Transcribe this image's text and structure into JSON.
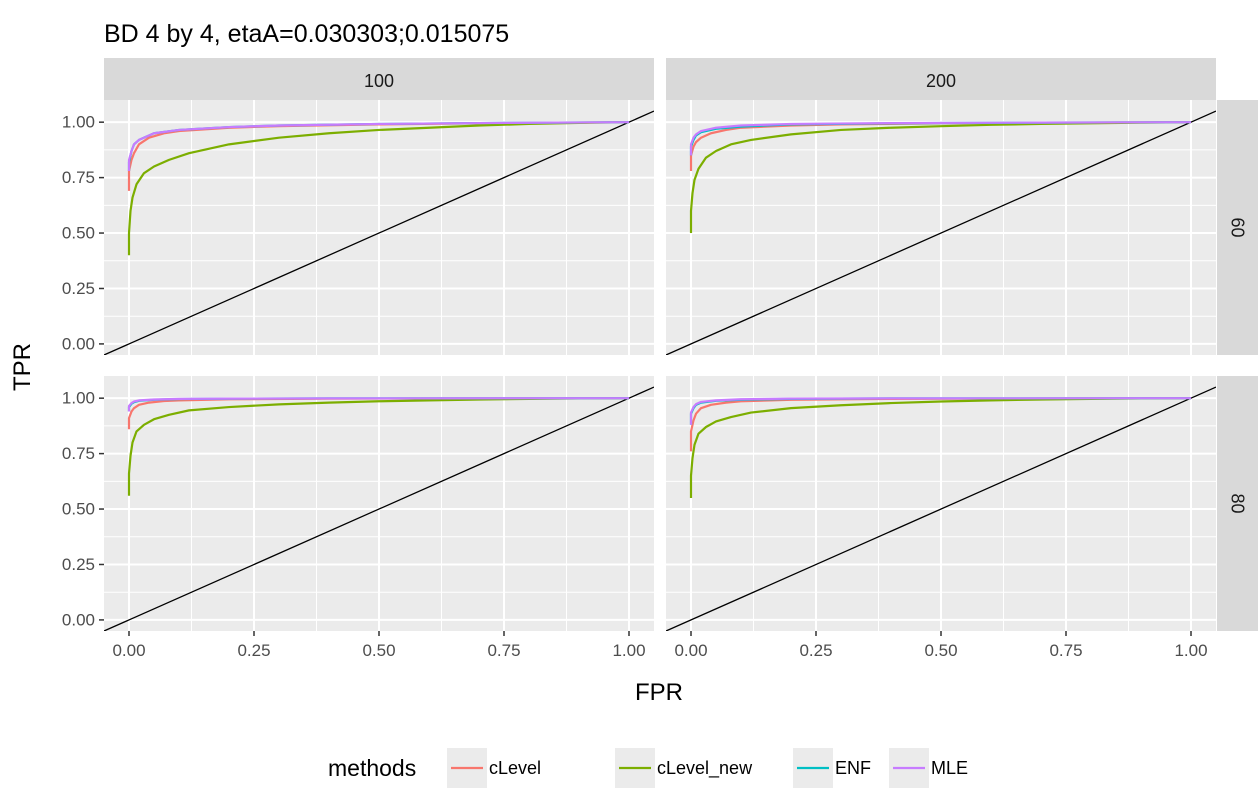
{
  "chart_data": {
    "type": "line",
    "title": "BD 4 by 4, etaA=0.030303;0.015075",
    "xlabel": "FPR",
    "ylabel": "TPR",
    "xlim": [
      0,
      1
    ],
    "ylim": [
      0,
      1
    ],
    "x_ticks": [
      "0.00",
      "0.25",
      "0.50",
      "0.75",
      "1.00"
    ],
    "y_ticks": [
      "0.00",
      "0.25",
      "0.50",
      "0.75",
      "1.00"
    ],
    "facet_cols": [
      "100",
      "200"
    ],
    "facet_rows": [
      "60",
      "80"
    ],
    "grid": true,
    "diagonal_reference": true,
    "legend": {
      "title": "methods",
      "position": "bottom",
      "entries": [
        {
          "name": "cLevel",
          "color": "#F8766D"
        },
        {
          "name": "cLevel_new",
          "color": "#7CAE00"
        },
        {
          "name": "ENF",
          "color": "#00BFC4"
        },
        {
          "name": "MLE",
          "color": "#C77CFF"
        }
      ]
    },
    "panels": [
      {
        "col": "100",
        "row": "60",
        "series": [
          {
            "name": "cLevel",
            "x": [
              0,
              0,
              0.005,
              0.01,
              0.02,
              0.04,
              0.07,
              0.1,
              0.2,
              0.3,
              0.5,
              0.7,
              1.0
            ],
            "y": [
              0.69,
              0.78,
              0.83,
              0.86,
              0.9,
              0.93,
              0.95,
              0.96,
              0.975,
              0.982,
              0.99,
              0.995,
              1.0
            ]
          },
          {
            "name": "cLevel_new",
            "x": [
              0,
              0,
              0.003,
              0.007,
              0.015,
              0.03,
              0.05,
              0.08,
              0.12,
              0.2,
              0.3,
              0.4,
              0.5,
              0.6,
              0.7,
              0.8,
              0.9,
              1.0
            ],
            "y": [
              0.4,
              0.5,
              0.6,
              0.66,
              0.72,
              0.77,
              0.8,
              0.83,
              0.86,
              0.9,
              0.93,
              0.95,
              0.965,
              0.975,
              0.985,
              0.992,
              0.997,
              1.0
            ]
          },
          {
            "name": "ENF",
            "x": [
              0,
              0,
              0.005,
              0.01,
              0.02,
              0.05,
              0.1,
              0.2,
              0.3,
              0.5,
              0.7,
              1.0
            ],
            "y": [
              0.78,
              0.82,
              0.87,
              0.9,
              0.92,
              0.95,
              0.965,
              0.978,
              0.985,
              0.992,
              0.996,
              1.0
            ]
          },
          {
            "name": "MLE",
            "x": [
              0,
              0,
              0.005,
              0.01,
              0.02,
              0.05,
              0.1,
              0.2,
              0.3,
              0.5,
              0.7,
              1.0
            ],
            "y": [
              0.78,
              0.83,
              0.87,
              0.9,
              0.92,
              0.95,
              0.965,
              0.978,
              0.985,
              0.992,
              0.996,
              1.0
            ]
          }
        ]
      },
      {
        "col": "200",
        "row": "60",
        "series": [
          {
            "name": "cLevel",
            "x": [
              0,
              0,
              0.005,
              0.01,
              0.02,
              0.04,
              0.07,
              0.1,
              0.2,
              0.3,
              0.5,
              1.0
            ],
            "y": [
              0.78,
              0.85,
              0.89,
              0.91,
              0.93,
              0.95,
              0.965,
              0.975,
              0.985,
              0.99,
              0.995,
              1.0
            ]
          },
          {
            "name": "cLevel_new",
            "x": [
              0,
              0,
              0.003,
              0.007,
              0.015,
              0.03,
              0.05,
              0.08,
              0.12,
              0.2,
              0.3,
              0.4,
              0.5,
              0.6,
              0.7,
              0.8,
              0.9,
              1.0
            ],
            "y": [
              0.5,
              0.6,
              0.68,
              0.74,
              0.79,
              0.84,
              0.87,
              0.9,
              0.92,
              0.945,
              0.965,
              0.975,
              0.982,
              0.988,
              0.992,
              0.995,
              0.998,
              1.0
            ]
          },
          {
            "name": "ENF",
            "x": [
              0,
              0,
              0.005,
              0.01,
              0.02,
              0.05,
              0.1,
              0.2,
              0.4,
              0.7,
              1.0
            ],
            "y": [
              0.85,
              0.89,
              0.92,
              0.94,
              0.955,
              0.97,
              0.98,
              0.99,
              0.995,
              0.998,
              1.0
            ]
          },
          {
            "name": "MLE",
            "x": [
              0,
              0,
              0.005,
              0.01,
              0.02,
              0.05,
              0.1,
              0.2,
              0.4,
              0.7,
              1.0
            ],
            "y": [
              0.85,
              0.9,
              0.93,
              0.945,
              0.96,
              0.975,
              0.985,
              0.992,
              0.996,
              0.998,
              1.0
            ]
          }
        ]
      },
      {
        "col": "100",
        "row": "80",
        "series": [
          {
            "name": "cLevel",
            "x": [
              0,
              0,
              0.005,
              0.01,
              0.02,
              0.04,
              0.07,
              0.1,
              0.2,
              0.4,
              1.0
            ],
            "y": [
              0.86,
              0.91,
              0.94,
              0.955,
              0.97,
              0.98,
              0.987,
              0.99,
              0.995,
              0.998,
              1.0
            ]
          },
          {
            "name": "cLevel_new",
            "x": [
              0,
              0,
              0.003,
              0.007,
              0.015,
              0.03,
              0.05,
              0.08,
              0.12,
              0.2,
              0.3,
              0.4,
              0.5,
              0.6,
              0.7,
              0.8,
              0.9,
              1.0
            ],
            "y": [
              0.56,
              0.66,
              0.74,
              0.8,
              0.85,
              0.88,
              0.905,
              0.925,
              0.945,
              0.96,
              0.972,
              0.98,
              0.986,
              0.99,
              0.994,
              0.997,
              0.999,
              1.0
            ]
          },
          {
            "name": "ENF",
            "x": [
              0,
              0,
              0.005,
              0.01,
              0.02,
              0.05,
              0.1,
              0.2,
              0.4,
              1.0
            ],
            "y": [
              0.94,
              0.96,
              0.975,
              0.982,
              0.988,
              0.993,
              0.996,
              0.998,
              0.999,
              1.0
            ]
          },
          {
            "name": "MLE",
            "x": [
              0,
              0,
              0.005,
              0.01,
              0.02,
              0.05,
              0.1,
              0.2,
              0.4,
              1.0
            ],
            "y": [
              0.94,
              0.965,
              0.978,
              0.985,
              0.99,
              0.994,
              0.997,
              0.998,
              0.999,
              1.0
            ]
          }
        ]
      },
      {
        "col": "200",
        "row": "80",
        "series": [
          {
            "name": "cLevel",
            "x": [
              0,
              0,
              0.005,
              0.01,
              0.02,
              0.04,
              0.07,
              0.1,
              0.2,
              0.4,
              1.0
            ],
            "y": [
              0.76,
              0.85,
              0.9,
              0.93,
              0.955,
              0.97,
              0.98,
              0.986,
              0.993,
              0.997,
              1.0
            ]
          },
          {
            "name": "cLevel_new",
            "x": [
              0,
              0,
              0.003,
              0.007,
              0.015,
              0.03,
              0.05,
              0.08,
              0.12,
              0.2,
              0.3,
              0.4,
              0.5,
              0.6,
              0.7,
              0.8,
              0.9,
              1.0
            ],
            "y": [
              0.55,
              0.65,
              0.73,
              0.79,
              0.84,
              0.87,
              0.895,
              0.915,
              0.935,
              0.955,
              0.968,
              0.978,
              0.985,
              0.99,
              0.994,
              0.997,
              0.999,
              1.0
            ]
          },
          {
            "name": "ENF",
            "x": [
              0,
              0,
              0.005,
              0.01,
              0.02,
              0.05,
              0.1,
              0.2,
              0.4,
              1.0
            ],
            "y": [
              0.88,
              0.93,
              0.955,
              0.97,
              0.98,
              0.988,
              0.993,
              0.997,
              0.999,
              1.0
            ]
          },
          {
            "name": "MLE",
            "x": [
              0,
              0,
              0.005,
              0.01,
              0.02,
              0.05,
              0.1,
              0.2,
              0.4,
              1.0
            ],
            "y": [
              0.88,
              0.935,
              0.96,
              0.973,
              0.983,
              0.99,
              0.995,
              0.998,
              0.999,
              1.0
            ]
          }
        ]
      }
    ]
  }
}
